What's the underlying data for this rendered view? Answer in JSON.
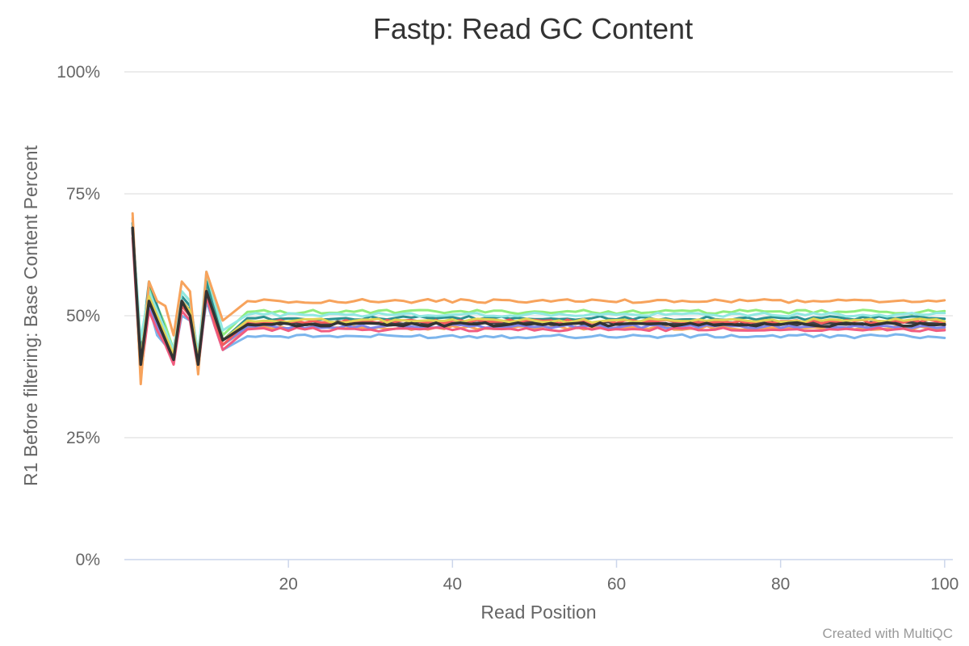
{
  "chart_data": {
    "type": "line",
    "title": "Fastp: Read GC Content",
    "xlabel": "Read Position",
    "ylabel": "R1 Before filtering: Base Content Percent",
    "credit": "Created with MultiQC",
    "xlim": [
      0,
      101
    ],
    "ylim": [
      0,
      100
    ],
    "y_ticks": [
      {
        "value": 0,
        "label": "0%"
      },
      {
        "value": 25,
        "label": "25%"
      },
      {
        "value": 50,
        "label": "50%"
      },
      {
        "value": 75,
        "label": "75%"
      },
      {
        "value": 100,
        "label": "100%"
      }
    ],
    "x_ticks": [
      {
        "value": 20,
        "label": "20"
      },
      {
        "value": 40,
        "label": "40"
      },
      {
        "value": 60,
        "label": "60"
      },
      {
        "value": 80,
        "label": "80"
      },
      {
        "value": 100,
        "label": "100"
      }
    ],
    "grid": true,
    "legend": "none",
    "series": [
      {
        "color": "#7cb5ec",
        "early": [
          69,
          40,
          52,
          46,
          44,
          41,
          50,
          49,
          40,
          53,
          48,
          43
        ],
        "plateau": 45.8
      },
      {
        "color": "#f7a35c",
        "early": [
          70,
          37,
          53,
          48,
          45,
          40,
          52,
          50,
          39,
          56,
          50,
          44
        ],
        "plateau": 47.5
      },
      {
        "color": "#90ed7d",
        "early": [
          68,
          44,
          56,
          52,
          48,
          43,
          55,
          53,
          42,
          58,
          53,
          46
        ],
        "plateau": 50.8
      },
      {
        "color": "#434348",
        "early": [
          68,
          40,
          54,
          50,
          46,
          42,
          53,
          51,
          41,
          55,
          50,
          45
        ],
        "plateau": 48.5
      },
      {
        "color": "#8085e9",
        "early": [
          67,
          39,
          52,
          48,
          45,
          41,
          52,
          50,
          40,
          54,
          49,
          44
        ],
        "plateau": 47.8
      },
      {
        "color": "#f15c80",
        "early": [
          66,
          38,
          51,
          47,
          44,
          40,
          51,
          49,
          39,
          54,
          48,
          43
        ],
        "plateau": 47.2
      },
      {
        "color": "#2b908f",
        "early": [
          69,
          42,
          57,
          52,
          47,
          43,
          54,
          52,
          41,
          57,
          51,
          45
        ],
        "plateau": 49.5
      },
      {
        "color": "#f45b5b",
        "early": [
          67,
          39,
          53,
          49,
          45,
          41,
          52,
          50,
          40,
          55,
          49,
          44
        ],
        "plateau": 48.8
      },
      {
        "color": "#91e8e1",
        "early": [
          68,
          45,
          55,
          51,
          47,
          43,
          55,
          53,
          42,
          59,
          53,
          47
        ],
        "plateau": 50.2
      },
      {
        "color": "#f7a35c",
        "early": [
          71,
          36,
          57,
          53,
          52,
          46,
          57,
          55,
          38,
          59,
          54,
          49
        ],
        "plateau": 53.0
      },
      {
        "color": "#e4d354",
        "early": [
          68,
          41,
          54,
          50,
          46,
          42,
          53,
          51,
          41,
          55,
          50,
          45
        ],
        "plateau": 49.0
      },
      {
        "color": "#333333",
        "early": [
          68,
          40,
          53,
          49,
          45,
          41,
          53,
          50,
          40,
          55,
          50,
          45
        ],
        "plateau": 48.2
      }
    ]
  }
}
